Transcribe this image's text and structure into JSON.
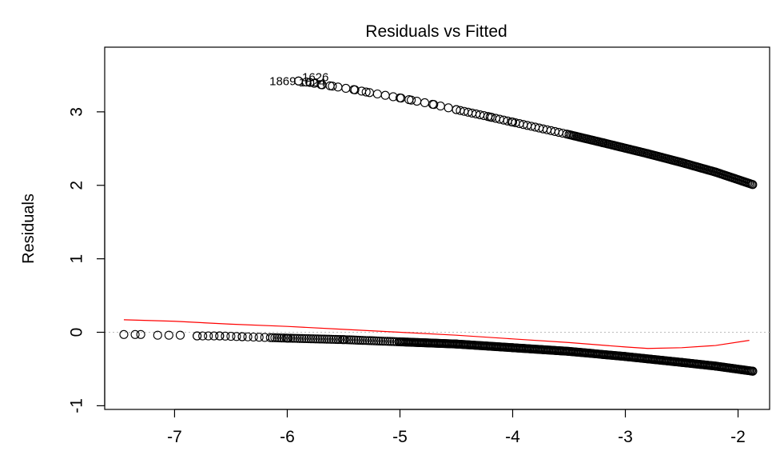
{
  "chart_data": {
    "type": "scatter",
    "title": "Residuals vs Fitted",
    "xlabel": "",
    "ylabel": "Residuals",
    "xlim": [
      -7.62,
      -1.72
    ],
    "ylim": [
      -1.05,
      3.88
    ],
    "xticks": [
      -7,
      -6,
      -5,
      -4,
      -3,
      -2
    ],
    "yticks": [
      -1,
      0,
      1,
      2,
      3
    ],
    "grid": false,
    "legend": "none",
    "reference_line": {
      "y": 0,
      "style": "dotted",
      "color": "#bbbbbb"
    },
    "series": [
      {
        "marker": "open-circle",
        "color": "#000000",
        "upper_band": {
          "x": [
            -5.9,
            -5.8,
            -5.7,
            -5.6,
            -5.4,
            -5.3,
            -5.0,
            -4.9,
            -4.7,
            -4.5,
            -4.2,
            -4.0,
            -3.5,
            -3.2,
            -2.8,
            -2.5,
            -2.2,
            -1.87
          ],
          "y": [
            3.42,
            3.4,
            3.37,
            3.35,
            3.3,
            3.27,
            3.19,
            3.16,
            3.1,
            3.03,
            2.93,
            2.86,
            2.69,
            2.58,
            2.43,
            2.31,
            2.18,
            2.01
          ]
        },
        "lower_band": {
          "x": [
            -7.45,
            -7.35,
            -7.3,
            -7.15,
            -7.05,
            -6.95,
            -6.8,
            -6.6,
            -6.4,
            -6.0,
            -5.5,
            -5.0,
            -4.5,
            -4.0,
            -3.5,
            -3.0,
            -2.5,
            -2.2,
            -1.87
          ],
          "y": [
            -0.03,
            -0.03,
            -0.03,
            -0.04,
            -0.04,
            -0.04,
            -0.05,
            -0.05,
            -0.06,
            -0.08,
            -0.1,
            -0.13,
            -0.16,
            -0.21,
            -0.26,
            -0.33,
            -0.41,
            -0.46,
            -0.53
          ]
        }
      }
    ],
    "smoother": {
      "color": "#ff0000",
      "x": [
        -7.45,
        -7.0,
        -6.5,
        -6.0,
        -5.5,
        -5.0,
        -4.5,
        -4.0,
        -3.5,
        -3.0,
        -2.8,
        -2.5,
        -2.2,
        -1.9
      ],
      "y": [
        0.17,
        0.15,
        0.11,
        0.08,
        0.04,
        0.0,
        -0.04,
        -0.09,
        -0.14,
        -0.2,
        -0.22,
        -0.21,
        -0.18,
        -0.11
      ]
    },
    "annotations": [
      {
        "text": "1869",
        "x": -6.04,
        "y": 3.42
      },
      {
        "text": "1626",
        "x": -5.75,
        "y": 3.47
      },
      {
        "text": "1624",
        "x": -5.78,
        "y": 3.4
      }
    ]
  }
}
